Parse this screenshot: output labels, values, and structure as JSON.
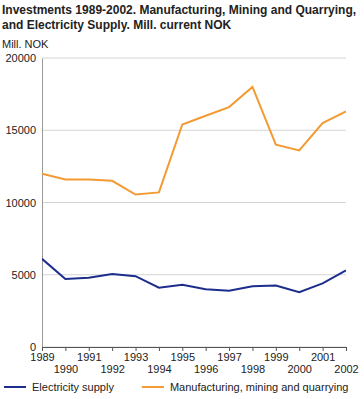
{
  "chart_data": {
    "type": "line",
    "title": "Investments 1989-2002. Manufacturing, Mining and Quarrying, and Electricity Supply. Mill. current NOK",
    "y_label": "Mill. NOK",
    "x": [
      1989,
      1990,
      1991,
      1992,
      1993,
      1994,
      1995,
      1996,
      1997,
      1998,
      1999,
      2000,
      2001,
      2002
    ],
    "xlim": [
      1989,
      2002
    ],
    "xticks": [
      1989,
      1990,
      1991,
      1992,
      1993,
      1994,
      1995,
      1996,
      1997,
      1998,
      1999,
      2000,
      2001,
      2002
    ],
    "ylim": [
      0,
      20000
    ],
    "yticks": [
      0,
      5000,
      10000,
      15000,
      20000
    ],
    "grid": true,
    "legend": "bottom",
    "series": [
      {
        "name": "Electricity supply",
        "color": "#1c2d8c",
        "values": [
          6100,
          4700,
          4800,
          5050,
          4900,
          4100,
          4300,
          4000,
          3900,
          4200,
          4250,
          3800,
          4400,
          5300
        ]
      },
      {
        "name": "Manufacturing, mining and quarrying",
        "color": "#f39a33",
        "values": [
          12000,
          11600,
          11600,
          11500,
          10550,
          10700,
          15400,
          16000,
          16600,
          18000,
          14000,
          13600,
          15500,
          16300
        ]
      }
    ]
  }
}
